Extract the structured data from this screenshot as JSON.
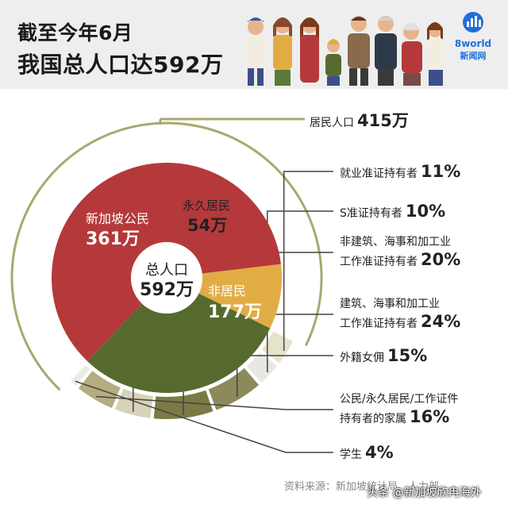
{
  "header": {
    "title_line1": "截至今年6月",
    "title_line2": "我国总人口达592万",
    "logo_brand": "8world",
    "logo_sub": "新闻网"
  },
  "chart_data": {
    "type": "pie",
    "center": {
      "label": "总人口",
      "value": "592万"
    },
    "inner": [
      {
        "name": "新加坡公民",
        "value": 361,
        "display": "361万",
        "color": "#b5393a"
      },
      {
        "name": "永久居民",
        "value": 54,
        "display": "54万",
        "color": "#e2ac45"
      },
      {
        "name": "非居民",
        "value": 177,
        "display": "177万",
        "color": "#566a30"
      }
    ],
    "outer_group": {
      "label": "居民人口",
      "value": "415万"
    },
    "nonresident_breakdown": [
      {
        "name": "就业准证持有者",
        "pct": "11%",
        "value": 11,
        "color": "#e6e3cc"
      },
      {
        "name": "S准证持有者",
        "pct": "10%",
        "value": 10,
        "color": "#e8e8e3"
      },
      {
        "name": "非建筑、海事和加工业工作准证持有者",
        "line1": "非建筑、海事和加工业",
        "line2": "工作准证持有者",
        "pct": "20%",
        "value": 20,
        "color": "#8c8a5a"
      },
      {
        "name": "建筑、海事和加工业工作准证持有者",
        "line1": "建筑、海事和加工业",
        "line2": "工作准证持有者",
        "pct": "24%",
        "value": 24,
        "color": "#7a7a45"
      },
      {
        "name": "外籍女佣",
        "pct": "15%",
        "value": 15,
        "color": "#d8d2b8"
      },
      {
        "name": "公民/永久居民/工作证件持有者的家属",
        "line1": "公民/永久居民/工作证件",
        "line2": "持有者的家属",
        "pct": "16%",
        "value": 16,
        "color": "#b3ad80"
      },
      {
        "name": "学生",
        "pct": "4%",
        "value": 4,
        "color": "#ecebe4"
      }
    ]
  },
  "footer": {
    "source": "资料来源：新加坡统计局、人力部"
  },
  "watermark": "头条 @新加坡欣冉海外"
}
